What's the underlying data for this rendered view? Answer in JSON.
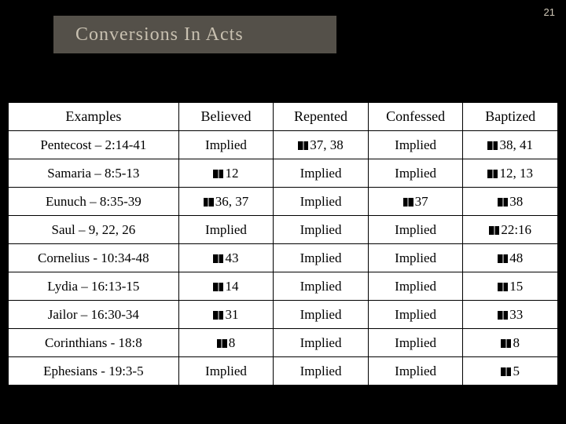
{
  "page_number": "21",
  "title": "Conversions In Acts",
  "colors": {
    "background": "#000000",
    "title_bar_bg": "#545049",
    "title_text": "#c8c0b0",
    "table_bg": "#ffffff",
    "table_border": "#000000",
    "table_text": "#000000",
    "page_num_text": "#d0c8b8"
  },
  "typography": {
    "title_fontsize": 24,
    "header_fontsize": 18,
    "cell_fontsize": 17,
    "font_family": "Georgia"
  },
  "table": {
    "columns": [
      "Examples",
      "Believed",
      "Repented",
      "Confessed",
      "Baptized"
    ],
    "rows": [
      {
        "example": "Pentecost – 2:14-41",
        "believed": {
          "icon": false,
          "text": "Implied"
        },
        "repented": {
          "icon": true,
          "text": "37, 38"
        },
        "confessed": {
          "icon": false,
          "text": "Implied"
        },
        "baptized": {
          "icon": true,
          "text": "38, 41"
        }
      },
      {
        "example": "Samaria – 8:5-13",
        "believed": {
          "icon": true,
          "text": "12"
        },
        "repented": {
          "icon": false,
          "text": "Implied"
        },
        "confessed": {
          "icon": false,
          "text": "Implied"
        },
        "baptized": {
          "icon": true,
          "text": "12, 13"
        }
      },
      {
        "example": "Eunuch – 8:35-39",
        "believed": {
          "icon": true,
          "text": "36, 37"
        },
        "repented": {
          "icon": false,
          "text": "Implied"
        },
        "confessed": {
          "icon": true,
          "text": "37"
        },
        "baptized": {
          "icon": true,
          "text": "38"
        }
      },
      {
        "example": "Saul – 9, 22, 26",
        "believed": {
          "icon": false,
          "text": "Implied"
        },
        "repented": {
          "icon": false,
          "text": "Implied"
        },
        "confessed": {
          "icon": false,
          "text": "Implied"
        },
        "baptized": {
          "icon": true,
          "text": "22:16"
        }
      },
      {
        "example": "Cornelius - 10:34-48",
        "believed": {
          "icon": true,
          "text": "43"
        },
        "repented": {
          "icon": false,
          "text": "Implied"
        },
        "confessed": {
          "icon": false,
          "text": "Implied"
        },
        "baptized": {
          "icon": true,
          "text": "48"
        }
      },
      {
        "example": "Lydia – 16:13-15",
        "believed": {
          "icon": true,
          "text": "14"
        },
        "repented": {
          "icon": false,
          "text": "Implied"
        },
        "confessed": {
          "icon": false,
          "text": "Implied"
        },
        "baptized": {
          "icon": true,
          "text": "15"
        }
      },
      {
        "example": "Jailor – 16:30-34",
        "believed": {
          "icon": true,
          "text": "31"
        },
        "repented": {
          "icon": false,
          "text": "Implied"
        },
        "confessed": {
          "icon": false,
          "text": "Implied"
        },
        "baptized": {
          "icon": true,
          "text": "33"
        }
      },
      {
        "example": "Corinthians - 18:8",
        "believed": {
          "icon": true,
          "text": "8"
        },
        "repented": {
          "icon": false,
          "text": "Implied"
        },
        "confessed": {
          "icon": false,
          "text": "Implied"
        },
        "baptized": {
          "icon": true,
          "text": "8"
        }
      },
      {
        "example": "Ephesians - 19:3-5",
        "believed": {
          "icon": false,
          "text": "Implied"
        },
        "repented": {
          "icon": false,
          "text": "Implied"
        },
        "confessed": {
          "icon": false,
          "text": "Implied"
        },
        "baptized": {
          "icon": true,
          "text": "5"
        }
      }
    ]
  }
}
